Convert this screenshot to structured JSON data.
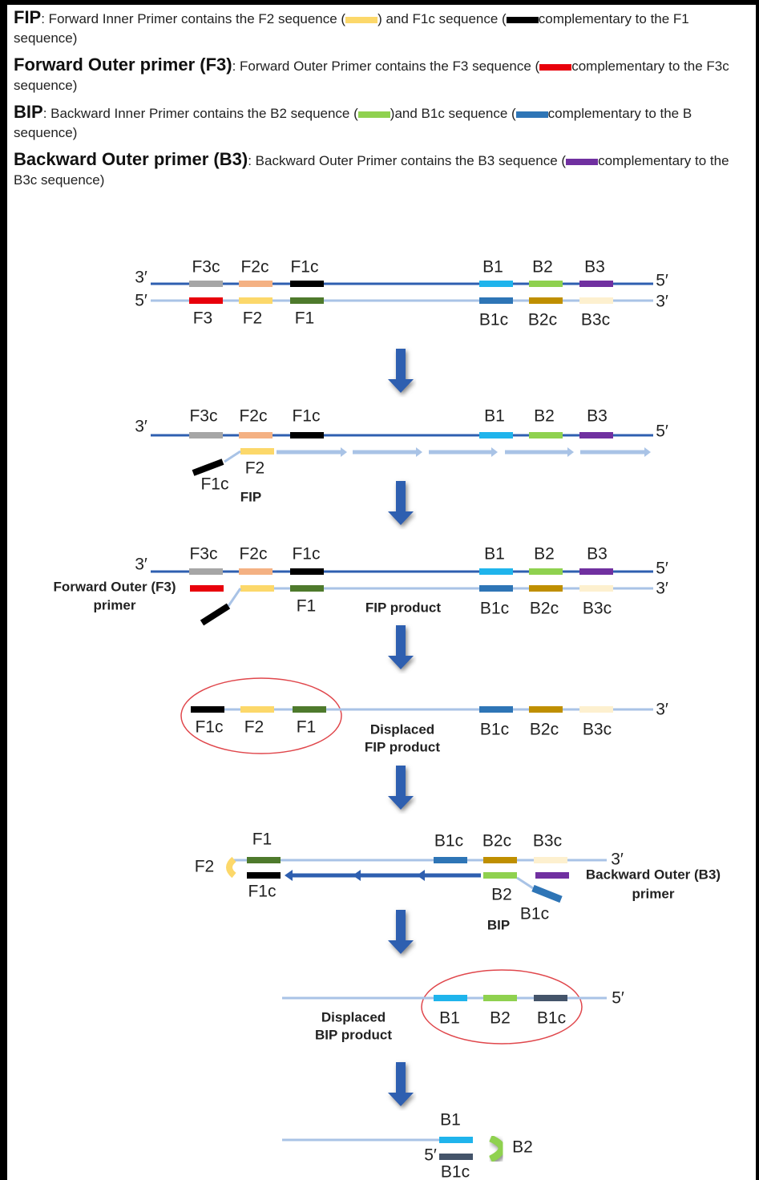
{
  "definitions": [
    {
      "term": "FIP",
      "text": [
        ": Forward Inner Primer contains the F2 sequence (",
        ") and F1c sequence (",
        "complementary to the F1 sequence)"
      ]
    },
    {
      "term": "Forward Outer primer (F3)",
      "text": [
        ": Forward Outer Primer contains the F3 sequence (",
        "complementary to the F3c sequence)"
      ]
    },
    {
      "term": "BIP",
      "text": [
        ": Backward Inner Primer contains the B2 sequence (",
        ")and B1c sequence (",
        "complementary to the B sequence)"
      ]
    },
    {
      "term": "Backward Outer primer (B3)",
      "text": [
        ": Backward Outer Primer contains the B3 sequence (",
        "complementary to the B3c sequence)"
      ]
    }
  ],
  "stages": [
    {
      "labels": [
        "3′",
        "5′",
        "F3c",
        "F2c",
        "F1c",
        "B1",
        "B2",
        "B3",
        "5′",
        "3′",
        "F3",
        "F2",
        "F1",
        "B1c",
        "B2c",
        "B3c"
      ]
    },
    {
      "labels": [
        "3′",
        "F3c",
        "F2c",
        "F1c",
        "B1",
        "B2",
        "B3",
        "5′",
        "F2",
        "F1c",
        "FIP"
      ]
    },
    {
      "labels": [
        "3′",
        "F3c",
        "F2c",
        "F1c",
        "B1",
        "B2",
        "B3",
        "5′",
        "3′",
        "Forward Outer (F3)",
        "primer",
        "F1",
        "FIP product",
        "B1c",
        "B2c",
        "B3c"
      ]
    },
    {
      "labels": [
        "F1c",
        "F2",
        "F1",
        "Displaced",
        "FIP product",
        "B1c",
        "B2c",
        "B3c",
        "3′"
      ]
    },
    {
      "labels": [
        "F1",
        "F2",
        "F1c",
        "B1c",
        "B2c",
        "B3c",
        "3′",
        "Backward Outer (B3)",
        "primer",
        "B2",
        "B1c",
        "BIP"
      ]
    },
    {
      "labels": [
        "Displaced",
        "BIP product",
        "B1",
        "B2",
        "B1c",
        "5′"
      ]
    },
    {
      "labels": [
        "B1",
        "5′",
        "B1c",
        "B2"
      ]
    }
  ]
}
